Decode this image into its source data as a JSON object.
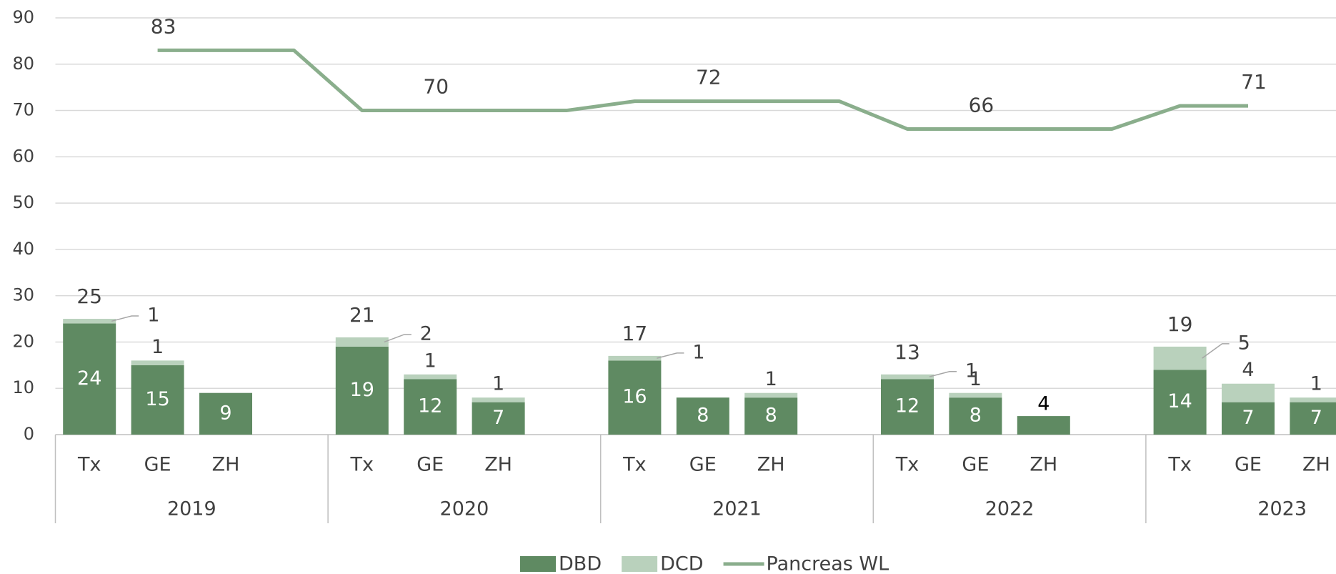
{
  "chart_data": {
    "type": "bar-line",
    "groups": [
      "2019",
      "2020",
      "2021",
      "2022",
      "2023"
    ],
    "categories": [
      "Tx",
      "GE",
      "ZH",
      null,
      "Tx",
      "GE",
      "ZH",
      null,
      "Tx",
      "GE",
      "ZH",
      null,
      "Tx",
      "GE",
      "ZH",
      null,
      "Tx",
      "GE",
      "ZH",
      null
    ],
    "series": [
      {
        "name": "DBD",
        "color": "#5f8a62",
        "kind": "bar",
        "values": [
          24,
          15,
          9,
          null,
          19,
          12,
          7,
          null,
          16,
          8,
          8,
          null,
          12,
          8,
          4,
          null,
          14,
          7,
          7,
          null
        ]
      },
      {
        "name": "DCD",
        "color": "#b9d1bc",
        "kind": "bar",
        "values": [
          1,
          1,
          0,
          null,
          2,
          1,
          1,
          null,
          1,
          0,
          1,
          null,
          1,
          1,
          0,
          null,
          5,
          4,
          1,
          null
        ]
      },
      {
        "name": "Pancreas WL",
        "color": "#8aae8c",
        "kind": "line",
        "values": [
          null,
          83,
          83,
          83,
          70,
          70,
          70,
          70,
          72,
          72,
          72,
          72,
          66,
          66,
          66,
          66,
          71,
          71,
          null,
          null
        ],
        "value_labels": [
          null,
          "83",
          null,
          null,
          null,
          "70",
          null,
          null,
          null,
          "72",
          null,
          null,
          null,
          "66",
          null,
          null,
          null,
          "71",
          null,
          null
        ]
      }
    ],
    "total_labels": [
      25,
      null,
      null,
      null,
      21,
      null,
      null,
      null,
      17,
      null,
      null,
      null,
      13,
      null,
      null,
      null,
      19,
      null,
      null,
      null
    ],
    "ylim": [
      0,
      90
    ],
    "yticks": [
      0,
      10,
      20,
      30,
      40,
      50,
      60,
      70,
      80,
      90
    ],
    "grid": true,
    "legend": "bottom"
  }
}
